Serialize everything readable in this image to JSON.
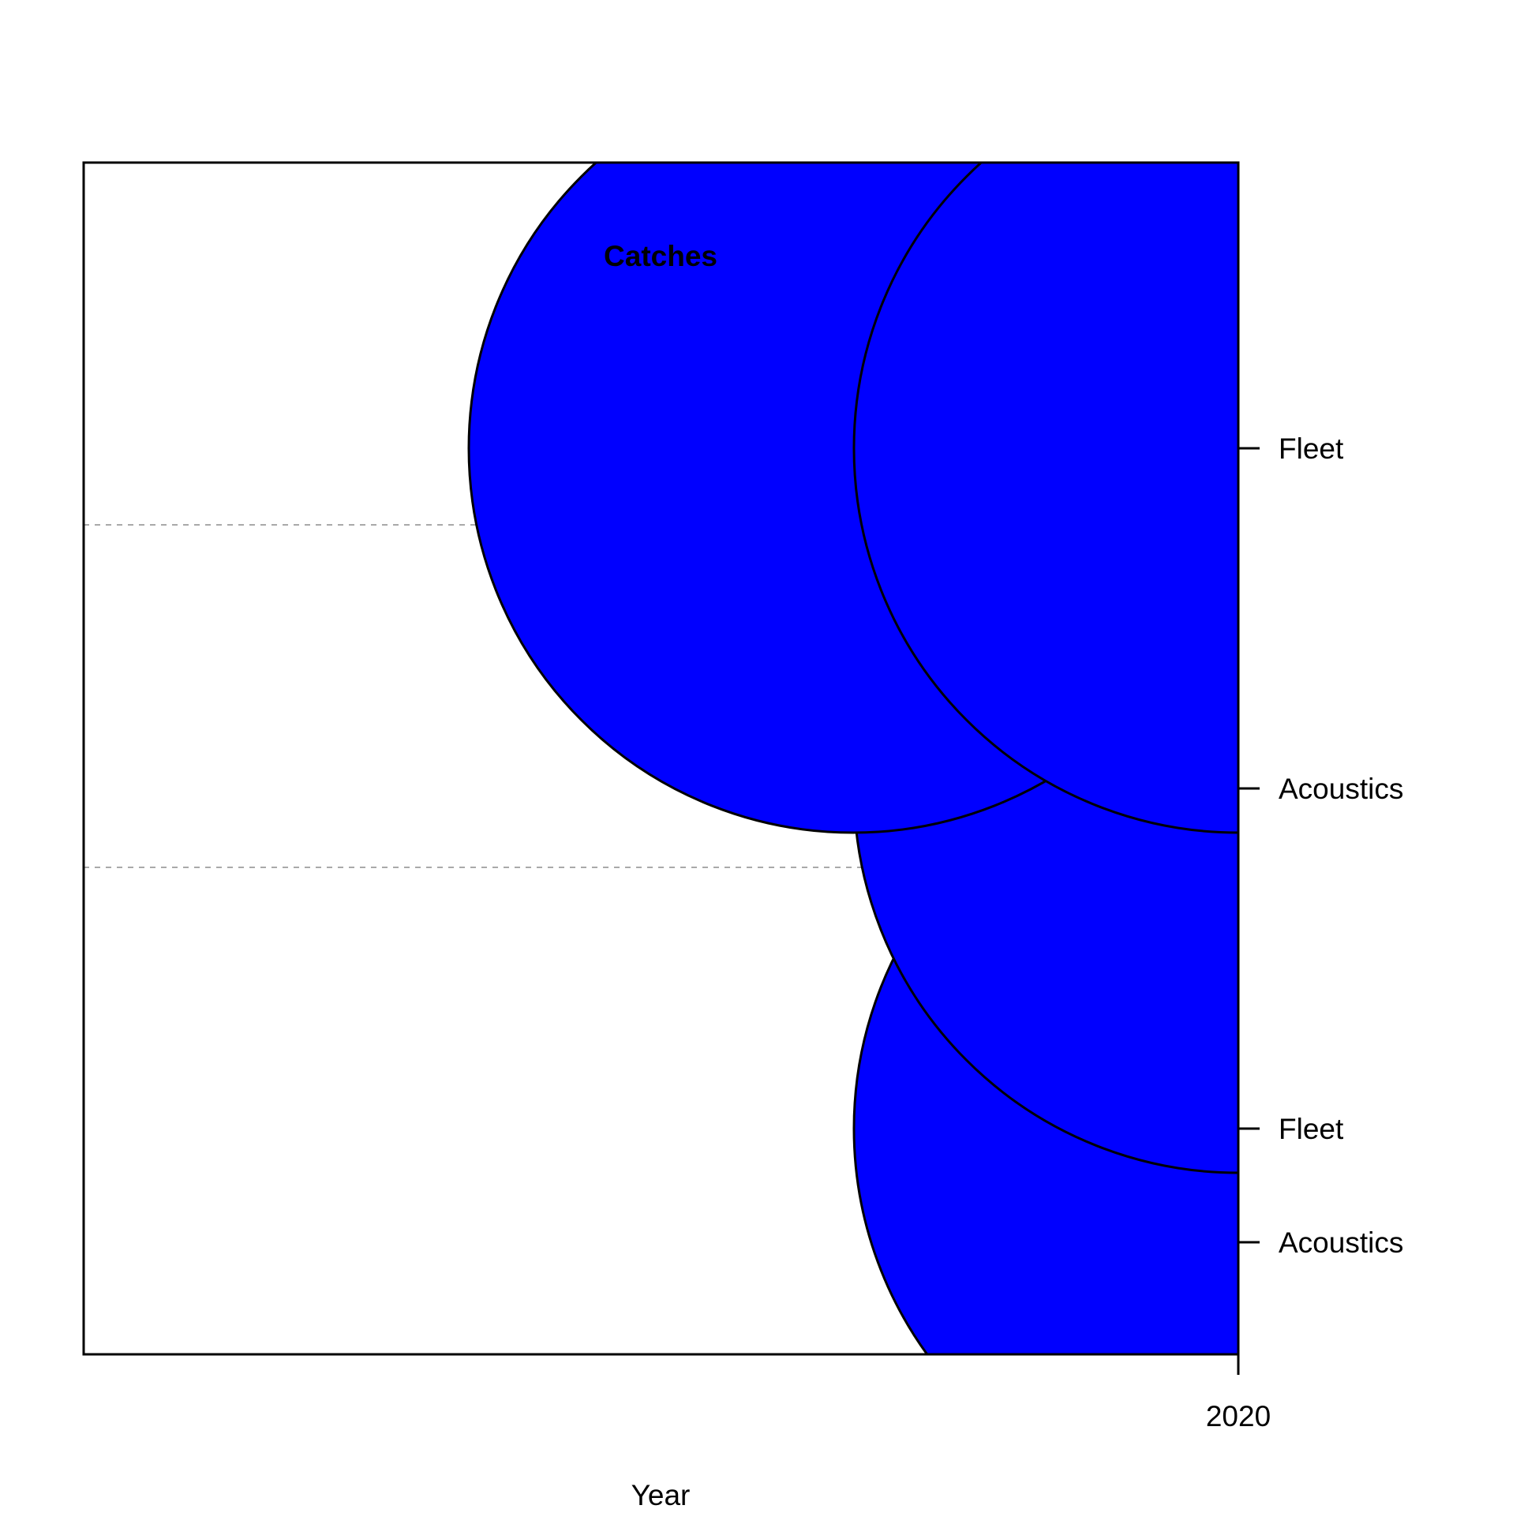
{
  "chart_data": {
    "type": "scatter",
    "title": "Catches",
    "xlabel": "Year",
    "ylabel": "",
    "x_ticks": [
      2020
    ],
    "y_tick_labels": [
      "Fleet",
      "Acoustics",
      "Fleet",
      "Acoustics"
    ],
    "grid": false,
    "points": [
      {
        "x": 2019.5,
        "y": "Fleet (upper)",
        "fill": "#0000ff"
      },
      {
        "x": 2020,
        "y": "Fleet (upper)",
        "fill": "#0000ff"
      },
      {
        "x": 2020,
        "y": "Acoustics (upper)",
        "fill": "#0000ff"
      },
      {
        "x": 2020,
        "y": "Fleet (lower)",
        "fill": "#0000ff"
      }
    ],
    "colors": {
      "bubble_fill": "#0000ff",
      "bubble_stroke": "#000000",
      "group_separator": "#a9a9a9"
    }
  }
}
